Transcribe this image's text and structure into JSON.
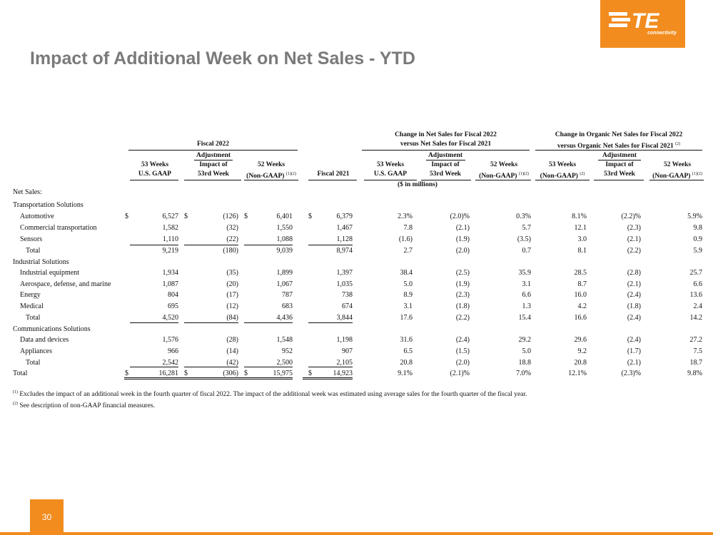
{
  "logo": {
    "mark": "TE",
    "sub": "connectivity"
  },
  "title": "Impact of Additional Week on Net Sales - YTD",
  "headers": {
    "fiscal2022": "Fiscal 2022",
    "change_net_line1": "Change in Net Sales for Fiscal 2022",
    "change_net_line2": "versus Net Sales for Fiscal 2021",
    "change_org_line1": "Change in Organic Net Sales for Fiscal 2022",
    "change_org_line2": "versus Organic Net Sales for Fiscal 2021",
    "change_org_sup": "(2)",
    "adjustment": "Adjustment",
    "c1_l1": "53 Weeks",
    "c1_l2": "U.S. GAAP",
    "c2_l1": "Impact of",
    "c2_l2": "53rd Week",
    "c3_l1": "52 Weeks",
    "c3_l2": "(Non-GAAP)",
    "c3_sup": "(1)(2)",
    "c4": "Fiscal 2021",
    "c5_l1": "53 Weeks",
    "c5_l2": "U.S. GAAP",
    "c6_l1": "Impact of",
    "c6_l2": "53rd Week",
    "c7_l1": "52 Weeks",
    "c7_l2": "(Non-GAAP)",
    "c7_sup": "(1)(2)",
    "c8_l1": "53 Weeks",
    "c8_l2": "(Non-GAAP)",
    "c8_sup": "(2)",
    "c9_l1": "Impact of",
    "c9_l2": "53rd Week",
    "c10_l1": "52 Weeks",
    "c10_l2": "(Non-GAAP)",
    "c10_sup": "(1)(2)",
    "units": "($ in millions)"
  },
  "dollar_sign": "$",
  "rows": [
    {
      "label": "Net Sales:",
      "values": []
    },
    {
      "label": "Transportation Solutions",
      "values": []
    },
    {
      "label": "Automotive",
      "values": [
        "6,527",
        "(126)",
        "6,401",
        "6,379",
        "2.3%",
        "(2.0)%",
        "0.3%",
        "8.1%",
        "(2.2)%",
        "5.9%"
      ]
    },
    {
      "label": "Commercial transportation",
      "values": [
        "1,582",
        "(32)",
        "1,550",
        "1,467",
        "7.8",
        "(2.1)",
        "5.7",
        "12.1",
        "(2.3)",
        "9.8"
      ]
    },
    {
      "label": "Sensors",
      "values": [
        "1,110",
        "(22)",
        "1,088",
        "1,128",
        "(1.6)",
        "(1.9)",
        "(3.5)",
        "3.0",
        "(2.1)",
        "0.9"
      ]
    },
    {
      "label": "Total",
      "values": [
        "9,219",
        "(180)",
        "9,039",
        "8,974",
        "2.7",
        "(2.0)",
        "0.7",
        "8.1",
        "(2.2)",
        "5.9"
      ]
    },
    {
      "label": "Industrial Solutions",
      "values": []
    },
    {
      "label": "Industrial equipment",
      "values": [
        "1,934",
        "(35)",
        "1,899",
        "1,397",
        "38.4",
        "(2.5)",
        "35.9",
        "28.5",
        "(2.8)",
        "25.7"
      ]
    },
    {
      "label": "Aerospace, defense, and marine",
      "values": [
        "1,087",
        "(20)",
        "1,067",
        "1,035",
        "5.0",
        "(1.9)",
        "3.1",
        "8.7",
        "(2.1)",
        "6.6"
      ]
    },
    {
      "label": "Energy",
      "values": [
        "804",
        "(17)",
        "787",
        "738",
        "8.9",
        "(2.3)",
        "6.6",
        "16.0",
        "(2.4)",
        "13.6"
      ]
    },
    {
      "label": "Medical",
      "values": [
        "695",
        "(12)",
        "683",
        "674",
        "3.1",
        "(1.8)",
        "1.3",
        "4.2",
        "(1.8)",
        "2.4"
      ]
    },
    {
      "label": "Total",
      "values": [
        "4,520",
        "(84)",
        "4,436",
        "3,844",
        "17.6",
        "(2.2)",
        "15.4",
        "16.6",
        "(2.4)",
        "14.2"
      ]
    },
    {
      "label": "Communications Solutions",
      "values": []
    },
    {
      "label": "Data and devices",
      "values": [
        "1,576",
        "(28)",
        "1,548",
        "1,198",
        "31.6",
        "(2.4)",
        "29.2",
        "29.6",
        "(2.4)",
        "27.2"
      ]
    },
    {
      "label": "Appliances",
      "values": [
        "966",
        "(14)",
        "952",
        "907",
        "6.5",
        "(1.5)",
        "5.0",
        "9.2",
        "(1.7)",
        "7.5"
      ]
    },
    {
      "label": "Total",
      "values": [
        "2,542",
        "(42)",
        "2,500",
        "2,105",
        "20.8",
        "(2.0)",
        "18.8",
        "20.8",
        "(2.1)",
        "18.7"
      ]
    },
    {
      "label": "Total",
      "values": [
        "16,281",
        "(306)",
        "15,975",
        "14,923",
        "9.1%",
        "(2.1)%",
        "7.0%",
        "12.1%",
        "(2.3)%",
        "9.8%"
      ]
    }
  ],
  "footnotes": [
    {
      "mark": "(1)",
      "text": "Excludes the impact of an additional week in the fourth quarter of fiscal 2022. The impact of the additional week was estimated using average sales for the fourth quarter of the fiscal year."
    },
    {
      "mark": "(2)",
      "text": "See description of non-GAAP financial measures."
    }
  ],
  "page_number": "30",
  "colors": {
    "accent": "#f28c1e",
    "title": "#7a7a7a"
  }
}
